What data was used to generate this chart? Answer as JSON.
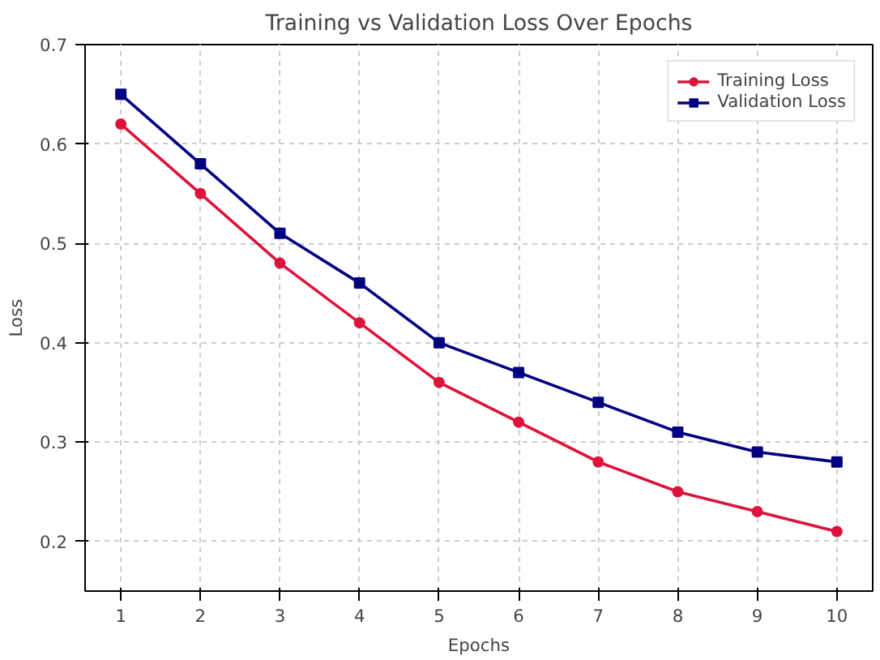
{
  "chart_data": {
    "type": "line",
    "title": "Training vs Validation Loss Over Epochs",
    "xlabel": "Epochs",
    "ylabel": "Loss",
    "x": [
      1,
      2,
      3,
      4,
      5,
      6,
      7,
      8,
      9,
      10
    ],
    "series": [
      {
        "name": "Training Loss",
        "color": "#dc143c",
        "marker": "circle",
        "values": [
          0.62,
          0.55,
          0.48,
          0.42,
          0.36,
          0.32,
          0.28,
          0.25,
          0.23,
          0.21
        ]
      },
      {
        "name": "Validation Loss",
        "color": "#000080",
        "marker": "square",
        "values": [
          0.65,
          0.58,
          0.51,
          0.46,
          0.4,
          0.37,
          0.34,
          0.31,
          0.29,
          0.28
        ]
      }
    ],
    "xlim": [
      0.55,
      10.45
    ],
    "ylim": [
      0.15,
      0.7
    ],
    "xticks": [
      1,
      2,
      3,
      4,
      5,
      6,
      7,
      8,
      9,
      10
    ],
    "yticks": [
      0.2,
      0.3,
      0.4,
      0.5,
      0.6,
      0.7
    ],
    "grid": true,
    "legend": "top right",
    "line_style": "solid"
  }
}
